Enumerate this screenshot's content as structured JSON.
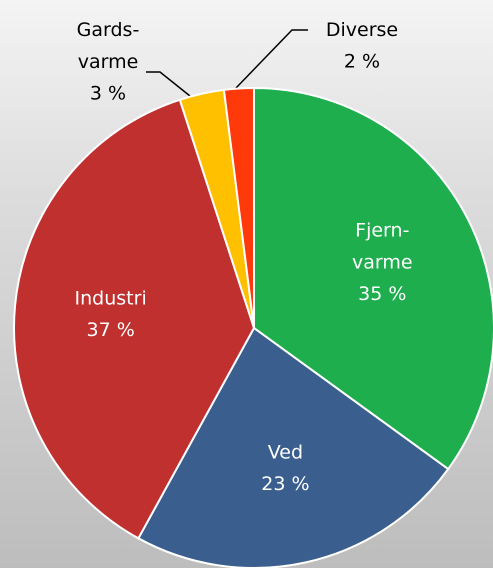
{
  "chart_data": {
    "type": "pie",
    "categories": [
      "Fjern-\nvarme",
      "Ved",
      "Industri",
      "Gards-\nvarme",
      "Diverse"
    ],
    "values": [
      35,
      23,
      37,
      3,
      2
    ],
    "value_labels": [
      "35 %",
      "23 %",
      "37 %",
      "3 %",
      "2 %"
    ],
    "colors": [
      "#1eae4e",
      "#3a5e8e",
      "#bf302e",
      "#ffc000",
      "#ff3a0a"
    ]
  }
}
